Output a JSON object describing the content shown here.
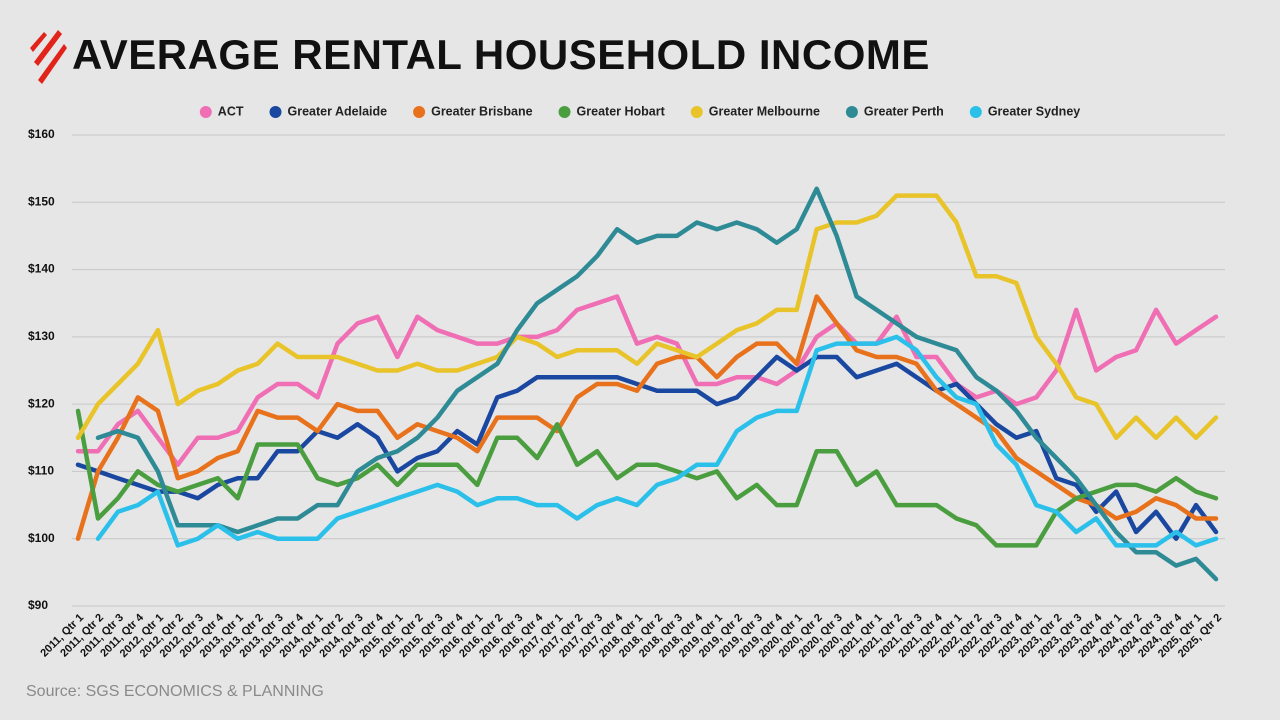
{
  "chart_data": {
    "type": "line",
    "title": "AVERAGE RENTAL HOUSEHOLD INCOME",
    "source": "Source: SGS ECONOMICS & PLANNING",
    "categories": [
      "2011, Qtr 1",
      "2011, Qtr 2",
      "2011, Qtr 3",
      "2011, Qtr 4",
      "2012, Qtr 1",
      "2012, Qtr 2",
      "2012, Qtr 3",
      "2012, Qtr 4",
      "2013, Qtr 1",
      "2013, Qtr 2",
      "2013, Qtr 3",
      "2013, Qtr 4",
      "2014, Qtr 1",
      "2014, Qtr 2",
      "2014, Qtr 3",
      "2014, Qtr 4",
      "2015, Qtr 1",
      "2015, Qtr 2",
      "2015, Qtr 3",
      "2015, Qtr 4",
      "2016, Qtr 1",
      "2016, Qtr 2",
      "2016, Qtr 3",
      "2016, Qtr 4",
      "2017, Qtr 1",
      "2017, Qtr 2",
      "2017, Qtr 3",
      "2017, Qtr 4",
      "2018, Qtr 1",
      "2018, Qtr 2",
      "2018, Qtr 3",
      "2018, Qtr 4",
      "2019, Qtr 1",
      "2019, Qtr 2",
      "2019, Qtr 3",
      "2019, Qtr 4",
      "2020, Qtr 1",
      "2020, Qtr 2",
      "2020, Qtr 3",
      "2020, Qtr 4",
      "2021, Qtr 1",
      "2021, Qtr 2",
      "2021, Qtr 3",
      "2021, Qtr 4",
      "2022, Qtr 1",
      "2022, Qtr 2",
      "2022, Qtr 3",
      "2022, Qtr 4",
      "2023, Qtr 1",
      "2023, Qtr 2",
      "2023, Qtr 3",
      "2023, Qtr 4",
      "2024, Qtr 1",
      "2024, Qtr 2",
      "2024, Qtr 3",
      "2024, Qtr 4",
      "2025, Qtr 1",
      "2025, Qtr 2"
    ],
    "series": [
      {
        "name": "ACT",
        "color": "#f06eb4",
        "values": [
          113,
          113,
          117,
          119,
          115,
          111,
          115,
          115,
          116,
          121,
          123,
          123,
          121,
          129,
          132,
          133,
          127,
          133,
          131,
          130,
          129,
          129,
          130,
          130,
          131,
          134,
          135,
          136,
          129,
          130,
          129,
          123,
          123,
          124,
          124,
          123,
          125,
          130,
          132,
          129,
          129,
          133,
          127,
          127,
          123,
          121,
          122,
          120,
          121,
          125,
          134,
          125,
          127,
          128,
          134,
          129,
          131,
          133
        ]
      },
      {
        "name": "Greater Adelaide",
        "color": "#1a47a0",
        "values": [
          111,
          110,
          109,
          108,
          107,
          107,
          106,
          108,
          109,
          109,
          113,
          113,
          116,
          115,
          117,
          115,
          110,
          112,
          113,
          116,
          114,
          121,
          122,
          124,
          124,
          124,
          124,
          124,
          123,
          122,
          122,
          122,
          120,
          121,
          124,
          127,
          125,
          127,
          127,
          124,
          125,
          126,
          124,
          122,
          123,
          120,
          117,
          115,
          116,
          109,
          108,
          104,
          107,
          101,
          104,
          100,
          105,
          101
        ]
      },
      {
        "name": "Greater Brisbane",
        "color": "#e8711c",
        "values": [
          100,
          110,
          115,
          121,
          119,
          109,
          110,
          112,
          113,
          119,
          118,
          118,
          116,
          120,
          119,
          119,
          115,
          117,
          116,
          115,
          113,
          118,
          118,
          118,
          116,
          121,
          123,
          123,
          122,
          126,
          127,
          127,
          124,
          127,
          129,
          129,
          126,
          136,
          132,
          128,
          127,
          127,
          126,
          122,
          120,
          118,
          116,
          112,
          110,
          108,
          106,
          105,
          103,
          104,
          106,
          105,
          103,
          103
        ]
      },
      {
        "name": "Greater Hobart",
        "color": "#4a9e3f",
        "values": [
          119,
          103,
          106,
          110,
          108,
          107,
          108,
          109,
          106,
          114,
          114,
          114,
          109,
          108,
          109,
          111,
          108,
          111,
          111,
          111,
          108,
          115,
          115,
          112,
          117,
          111,
          113,
          109,
          111,
          111,
          110,
          109,
          110,
          106,
          108,
          105,
          105,
          113,
          113,
          108,
          110,
          105,
          105,
          105,
          103,
          102,
          99,
          99,
          99,
          104,
          106,
          107,
          108,
          108,
          107,
          109,
          107,
          106
        ]
      },
      {
        "name": "Greater Melbourne",
        "color": "#e8c42a",
        "values": [
          115,
          120,
          123,
          126,
          131,
          120,
          122,
          123,
          125,
          126,
          129,
          127,
          127,
          127,
          126,
          125,
          125,
          126,
          125,
          125,
          126,
          127,
          130,
          129,
          127,
          128,
          128,
          128,
          126,
          129,
          128,
          127,
          129,
          131,
          132,
          134,
          134,
          146,
          147,
          147,
          148,
          151,
          151,
          151,
          147,
          139,
          139,
          138,
          130,
          126,
          121,
          120,
          115,
          118,
          115,
          118,
          115,
          118
        ]
      },
      {
        "name": "Greater Perth",
        "color": "#2e8b96",
        "values": [
          null,
          115,
          116,
          115,
          110,
          102,
          102,
          102,
          101,
          102,
          103,
          103,
          105,
          105,
          110,
          112,
          113,
          115,
          118,
          122,
          124,
          126,
          131,
          135,
          137,
          139,
          142,
          146,
          144,
          145,
          145,
          147,
          146,
          147,
          146,
          144,
          146,
          152,
          145,
          136,
          134,
          132,
          130,
          129,
          128,
          124,
          122,
          119,
          115,
          112,
          109,
          105,
          101,
          98,
          98,
          96,
          97,
          94
        ]
      },
      {
        "name": "Greater Sydney",
        "color": "#2bc0ea",
        "values": [
          null,
          100,
          104,
          105,
          107,
          99,
          100,
          102,
          100,
          101,
          100,
          100,
          100,
          103,
          104,
          105,
          106,
          107,
          108,
          107,
          105,
          106,
          106,
          105,
          105,
          103,
          105,
          106,
          105,
          108,
          109,
          111,
          111,
          116,
          118,
          119,
          119,
          128,
          129,
          129,
          129,
          130,
          128,
          124,
          121,
          120,
          114,
          111,
          105,
          104,
          101,
          103,
          99,
          99,
          99,
          101,
          99,
          100
        ]
      }
    ],
    "ylim": [
      90,
      160
    ],
    "yticks": [
      {
        "value": 90,
        "label": "$90"
      },
      {
        "value": 100,
        "label": "$100"
      },
      {
        "value": 110,
        "label": "$110"
      },
      {
        "value": 120,
        "label": "$120"
      },
      {
        "value": 130,
        "label": "$130"
      },
      {
        "value": 140,
        "label": "$140"
      },
      {
        "value": 150,
        "label": "$150"
      },
      {
        "value": 160,
        "label": "$160"
      }
    ],
    "grid": true
  }
}
